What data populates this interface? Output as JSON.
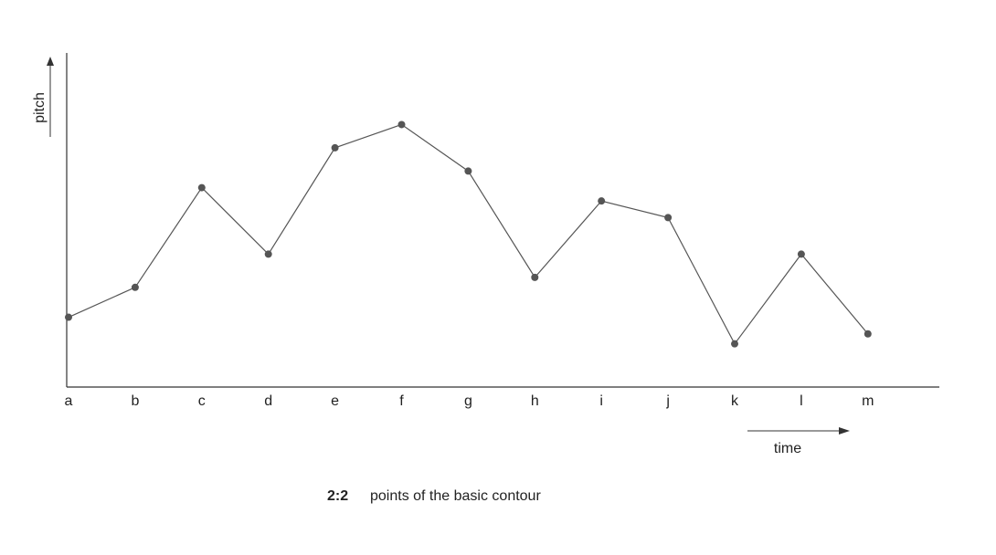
{
  "chart_data": {
    "type": "line",
    "figure_number": "2:2",
    "title": "points of the basic contour",
    "x_label": "time",
    "y_label": "pitch",
    "categories": [
      "a",
      "b",
      "c",
      "d",
      "e",
      "f",
      "g",
      "h",
      "i",
      "j",
      "k",
      "l",
      "m"
    ],
    "values": [
      21,
      30,
      60,
      40,
      72,
      79,
      65,
      33,
      56,
      51,
      13,
      40,
      16
    ],
    "color": "#555555",
    "ylim": [
      0,
      100
    ]
  }
}
